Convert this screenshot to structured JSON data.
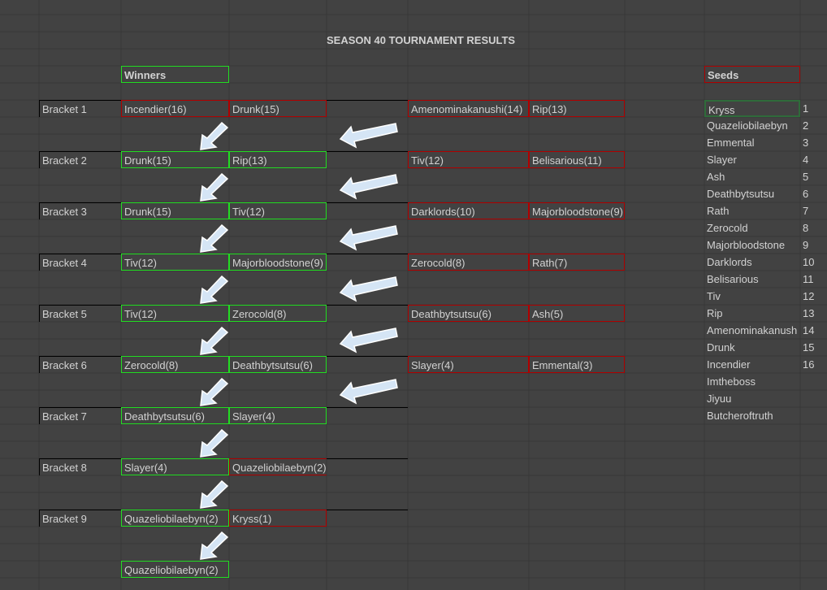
{
  "title": "SEASON 40 TOURNAMENT RESULTS",
  "winners_header": "Winners",
  "seeds_header": "Seeds",
  "colors": {
    "win_border": "#22dd22",
    "loss_border": "#b00000",
    "arrow_fill": "#d5e5f5",
    "background": "#424242"
  },
  "brackets": [
    {
      "label": "Bracket 1",
      "winners": [
        {
          "name": "Incendier(16)",
          "status": "red"
        },
        {
          "name": "Drunk(15)",
          "status": "red"
        }
      ],
      "losers": [
        "Amenominakanushi(14)",
        "Rip(13)"
      ]
    },
    {
      "label": "Bracket 2",
      "winners": [
        {
          "name": "Drunk(15)",
          "status": "green"
        },
        {
          "name": "Rip(13)",
          "status": "green"
        }
      ],
      "losers": [
        "Tiv(12)",
        "Belisarious(11)"
      ]
    },
    {
      "label": "Bracket 3",
      "winners": [
        {
          "name": "Drunk(15)",
          "status": "green"
        },
        {
          "name": "Tiv(12)",
          "status": "green"
        }
      ],
      "losers": [
        "Darklords(10)",
        "Majorbloodstone(9)"
      ]
    },
    {
      "label": "Bracket 4",
      "winners": [
        {
          "name": "Tiv(12)",
          "status": "green"
        },
        {
          "name": "Majorbloodstone(9)",
          "status": "green"
        }
      ],
      "losers": [
        "Zerocold(8)",
        "Rath(7)"
      ]
    },
    {
      "label": "Bracket 5",
      "winners": [
        {
          "name": "Tiv(12)",
          "status": "green"
        },
        {
          "name": "Zerocold(8)",
          "status": "green"
        }
      ],
      "losers": [
        "Deathbytsutsu(6)",
        "Ash(5)"
      ]
    },
    {
      "label": "Bracket 6",
      "winners": [
        {
          "name": "Zerocold(8)",
          "status": "green"
        },
        {
          "name": "Deathbytsutsu(6)",
          "status": "green"
        }
      ],
      "losers": [
        "Slayer(4)",
        "Emmental(3)"
      ]
    },
    {
      "label": "Bracket 7",
      "winners": [
        {
          "name": "Deathbytsutsu(6)",
          "status": "green"
        },
        {
          "name": "Slayer(4)",
          "status": "green"
        }
      ],
      "losers": []
    },
    {
      "label": "Bracket 8",
      "winners": [
        {
          "name": "Slayer(4)",
          "status": "green"
        },
        {
          "name": "Quazeliobilaebyn(2)",
          "status": "red-open"
        }
      ],
      "losers": []
    },
    {
      "label": "Bracket 9",
      "winners": [
        {
          "name": "Quazeliobilaebyn(2)",
          "status": "green"
        },
        {
          "name": "Kryss(1)",
          "status": "red"
        }
      ],
      "losers": []
    }
  ],
  "champion": "Quazeliobilaebyn(2)",
  "seeds": [
    {
      "name": "Kryss",
      "seed": "1"
    },
    {
      "name": "Quazeliobilaebyn",
      "seed": "2"
    },
    {
      "name": "Emmental",
      "seed": "3"
    },
    {
      "name": "Slayer",
      "seed": "4"
    },
    {
      "name": "Ash",
      "seed": "5"
    },
    {
      "name": "Deathbytsutsu",
      "seed": "6"
    },
    {
      "name": "Rath",
      "seed": "7"
    },
    {
      "name": "Zerocold",
      "seed": "8"
    },
    {
      "name": "Majorbloodstone",
      "seed": "9"
    },
    {
      "name": "Darklords",
      "seed": "10"
    },
    {
      "name": "Belisarious",
      "seed": "11"
    },
    {
      "name": "Tiv",
      "seed": "12"
    },
    {
      "name": "Rip",
      "seed": "13"
    },
    {
      "name": "Amenominakanush",
      "seed": "14"
    },
    {
      "name": "Drunk",
      "seed": "15"
    },
    {
      "name": "Incendier",
      "seed": "16"
    },
    {
      "name": "Imtheboss",
      "seed": ""
    },
    {
      "name": "Jiyuu",
      "seed": ""
    },
    {
      "name": "Butcheroftruth",
      "seed": ""
    }
  ]
}
